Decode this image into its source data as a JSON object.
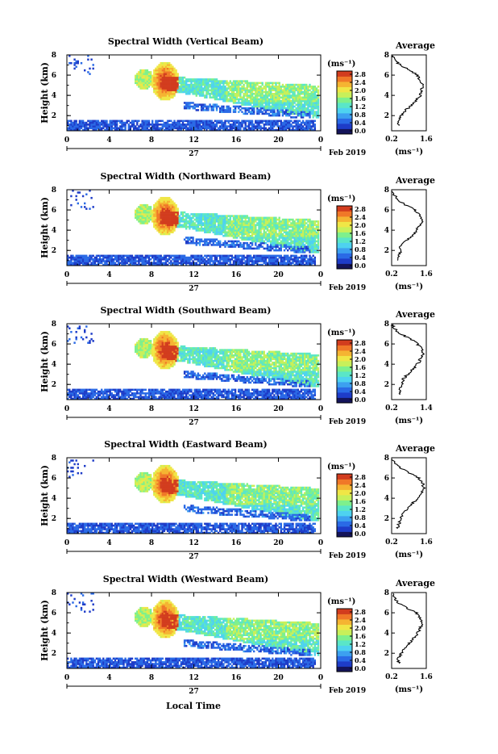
{
  "figure": {
    "xlabel": "Local Time"
  },
  "colorbar": {
    "unit_label": "(ms⁻¹)",
    "colors": [
      "#14145a",
      "#1e3cc8",
      "#2a6ae6",
      "#3ca0f0",
      "#4ed2f0",
      "#5ae6c8",
      "#7ef08c",
      "#c8f05a",
      "#f0e646",
      "#f5b432",
      "#f07828",
      "#d23c1e"
    ]
  },
  "chart_data": [
    {
      "type": "heatmap",
      "title": "Spectral Width (Vertical Beam)",
      "ylabel": "Height (km)",
      "xticks": [
        "0",
        "4",
        "8",
        "12",
        "16",
        "20",
        "0"
      ],
      "yticks": [
        "2",
        "4",
        "6",
        "8"
      ],
      "day_label": "27",
      "month_label": "Feb 2019",
      "colorbar_ticks": [
        "2.8",
        "2.4",
        "2.0",
        "1.6",
        "1.2",
        "0.8",
        "0.4",
        "0.0"
      ],
      "x_range": [
        0,
        24
      ],
      "y_range": [
        0.5,
        8
      ],
      "value_range": [
        0,
        3.0
      ],
      "profile": {
        "title": "Average",
        "xlabel": "(ms⁻¹)",
        "xticks": [
          "0.2",
          "1.6"
        ],
        "xlim": [
          0.2,
          1.6
        ],
        "yticks": [
          "2",
          "4",
          "6",
          "8"
        ],
        "ylim": [
          0.5,
          8
        ],
        "height_km": [
          1.0,
          1.5,
          2.0,
          2.5,
          3.0,
          3.5,
          4.0,
          4.5,
          5.0,
          5.5,
          6.0,
          6.5,
          7.0,
          7.5,
          8.0
        ],
        "values": [
          0.5,
          0.45,
          0.6,
          0.75,
          1.0,
          1.2,
          1.35,
          1.4,
          1.5,
          1.35,
          1.25,
          0.9,
          0.55,
          0.3,
          0.2
        ]
      }
    },
    {
      "type": "heatmap",
      "title": "Spectral Width (Northward Beam)",
      "ylabel": "Height (km)",
      "xticks": [
        "0",
        "4",
        "8",
        "12",
        "16",
        "20",
        "0"
      ],
      "yticks": [
        "2",
        "4",
        "6",
        "8"
      ],
      "day_label": "27",
      "month_label": "Feb 2019",
      "colorbar_ticks": [
        "2.8",
        "2.4",
        "2.0",
        "1.6",
        "1.2",
        "0.8",
        "0.4",
        "0.0"
      ],
      "x_range": [
        0,
        24
      ],
      "y_range": [
        0.5,
        8
      ],
      "value_range": [
        0,
        3.0
      ],
      "profile": {
        "title": "Average",
        "xlabel": "(ms⁻¹)",
        "xticks": [
          "0.2",
          "1.6"
        ],
        "xlim": [
          0.2,
          1.6
        ],
        "yticks": [
          "2",
          "4",
          "6",
          "8"
        ],
        "ylim": [
          0.5,
          8
        ],
        "height_km": [
          1.0,
          1.5,
          2.0,
          2.5,
          3.0,
          3.5,
          4.0,
          4.5,
          5.0,
          5.5,
          6.0,
          6.5,
          7.0,
          7.5,
          8.0
        ],
        "values": [
          0.45,
          0.5,
          0.6,
          0.55,
          0.8,
          1.05,
          1.2,
          1.35,
          1.45,
          1.3,
          1.15,
          0.75,
          0.45,
          0.3,
          0.2
        ]
      }
    },
    {
      "type": "heatmap",
      "title": "Spectral Width (Southward Beam)",
      "ylabel": "Height (km)",
      "xticks": [
        "0",
        "4",
        "8",
        "12",
        "16",
        "20",
        "0"
      ],
      "yticks": [
        "2",
        "4",
        "6",
        "8"
      ],
      "day_label": "27",
      "month_label": "Feb 2019",
      "colorbar_ticks": [
        "2.8",
        "2.4",
        "2.0",
        "1.6",
        "1.2",
        "0.8",
        "0.4",
        "0.0"
      ],
      "x_range": [
        0,
        24
      ],
      "y_range": [
        0.5,
        8
      ],
      "value_range": [
        0,
        3.0
      ],
      "profile": {
        "title": "Average",
        "xlabel": "(ms⁻¹)",
        "xticks": [
          "0.2",
          "1.4"
        ],
        "xlim": [
          0.2,
          1.4
        ],
        "yticks": [
          "2",
          "4",
          "6",
          "8"
        ],
        "ylim": [
          0.5,
          8
        ],
        "height_km": [
          1.0,
          1.5,
          2.0,
          2.5,
          3.0,
          3.5,
          4.0,
          4.5,
          5.0,
          5.5,
          6.0,
          6.5,
          7.0,
          7.5,
          8.0
        ],
        "values": [
          0.5,
          0.45,
          0.55,
          0.6,
          0.75,
          0.95,
          1.1,
          1.2,
          1.3,
          1.25,
          1.1,
          0.85,
          0.5,
          0.3,
          0.2
        ]
      }
    },
    {
      "type": "heatmap",
      "title": "Spectral Width (Eastward Beam)",
      "ylabel": "Height (km)",
      "xticks": [
        "0",
        "4",
        "8",
        "12",
        "16",
        "20",
        "0"
      ],
      "yticks": [
        "2",
        "4",
        "6",
        "8"
      ],
      "day_label": "27",
      "month_label": "Feb 2019",
      "colorbar_ticks": [
        "2.8",
        "2.4",
        "2.0",
        "1.6",
        "1.2",
        "0.8",
        "0.4",
        "0.0"
      ],
      "x_range": [
        0,
        24
      ],
      "y_range": [
        0.5,
        8
      ],
      "value_range": [
        0,
        3.0
      ],
      "profile": {
        "title": "Average",
        "xlabel": "(ms⁻¹)",
        "xticks": [
          "0.2",
          "1.6"
        ],
        "xlim": [
          0.2,
          1.6
        ],
        "yticks": [
          "2",
          "4",
          "6",
          "8"
        ],
        "ylim": [
          0.5,
          8
        ],
        "height_km": [
          1.0,
          1.5,
          2.0,
          2.5,
          3.0,
          3.5,
          4.0,
          4.5,
          5.0,
          5.5,
          6.0,
          6.5,
          7.0,
          7.5,
          8.0
        ],
        "values": [
          0.45,
          0.5,
          0.55,
          0.65,
          0.85,
          1.05,
          1.25,
          1.4,
          1.5,
          1.45,
          1.3,
          0.9,
          0.55,
          0.3,
          0.2
        ]
      }
    },
    {
      "type": "heatmap",
      "title": "Spectral Width (Westward Beam)",
      "ylabel": "Height (km)",
      "xticks": [
        "0",
        "4",
        "8",
        "12",
        "16",
        "20",
        "0"
      ],
      "yticks": [
        "2",
        "4",
        "6",
        "8"
      ],
      "day_label": "27",
      "month_label": "Feb 2019",
      "colorbar_ticks": [
        "2.8",
        "2.4",
        "2.0",
        "1.6",
        "1.2",
        "0.8",
        "0.4",
        "0.0"
      ],
      "x_range": [
        0,
        24
      ],
      "y_range": [
        0.5,
        8
      ],
      "value_range": [
        0,
        3.0
      ],
      "profile": {
        "title": "Average",
        "xlabel": "(ms⁻¹)",
        "xticks": [
          "0.2",
          "1.6"
        ],
        "xlim": [
          0.2,
          1.6
        ],
        "yticks": [
          "2",
          "4",
          "6",
          "8"
        ],
        "ylim": [
          0.5,
          8
        ],
        "height_km": [
          1.0,
          1.5,
          2.0,
          2.5,
          3.0,
          3.5,
          4.0,
          4.5,
          5.0,
          5.5,
          6.0,
          6.5,
          7.0,
          7.5,
          8.0
        ],
        "values": [
          0.5,
          0.45,
          0.6,
          0.7,
          0.9,
          1.1,
          1.25,
          1.35,
          1.45,
          1.35,
          1.2,
          0.8,
          0.45,
          0.3,
          0.2
        ]
      }
    }
  ]
}
